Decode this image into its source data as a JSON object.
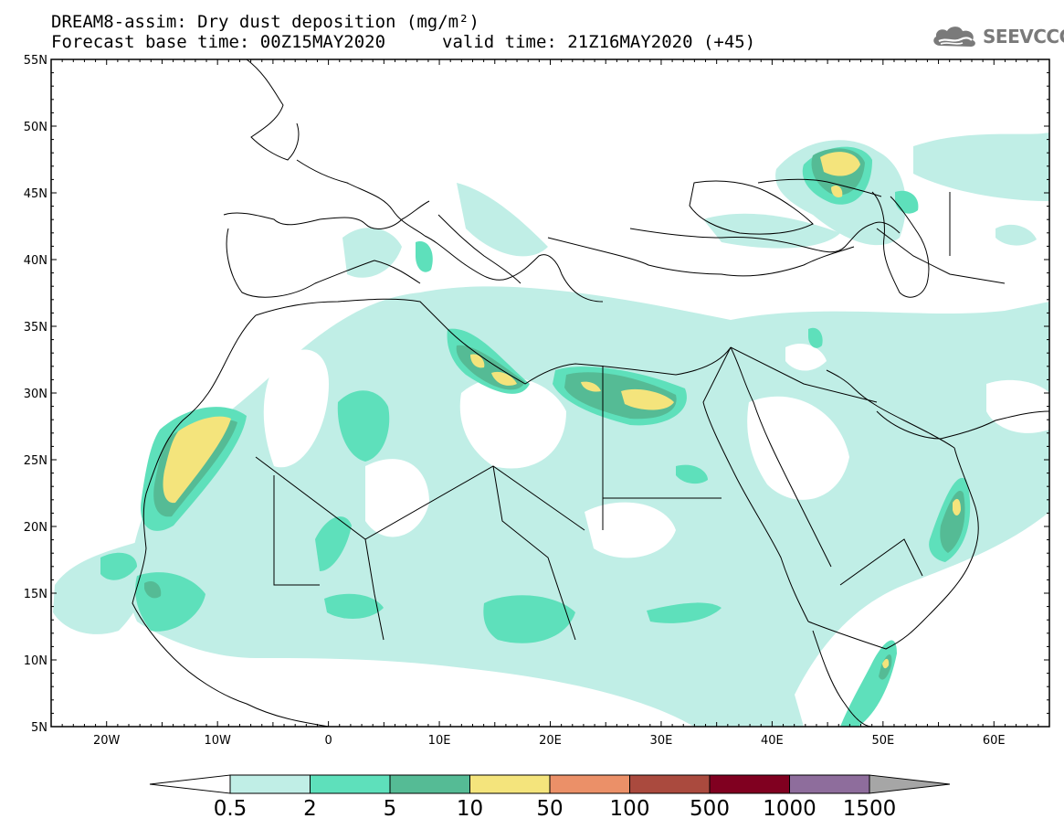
{
  "header": {
    "title_line1": "DREAM8-assim: Dry dust deposition (mg/m²)",
    "title_line2": "Forecast base time: 00Z15MAY2020",
    "valid_time": "valid time: 21Z16MAY2020 (+45)",
    "logo_text": "SEEVCCC",
    "logo_icon": "cloud-logo-icon"
  },
  "map": {
    "lon_range": [
      -25,
      65
    ],
    "lat_range": [
      5,
      55
    ],
    "lat_ticks": [
      "55N",
      "50N",
      "45N",
      "40N",
      "35N",
      "30N",
      "25N",
      "20N",
      "15N",
      "10N",
      "5N"
    ],
    "lon_ticks": [
      "20W",
      "10W",
      "0",
      "10E",
      "20E",
      "30E",
      "40E",
      "50E",
      "60E"
    ]
  },
  "colorbar": {
    "labels": [
      "0.5",
      "2",
      "5",
      "10",
      "50",
      "100",
      "500",
      "1000",
      "1500"
    ],
    "colors": [
      "#c0eee6",
      "#5ee0bb",
      "#55bb95",
      "#f4e47c",
      "#eb9068",
      "#aa4a3e",
      "#800020",
      "#8e6d9c"
    ],
    "under_color": "#ffffff",
    "over_color": "#a6a6a6"
  }
}
